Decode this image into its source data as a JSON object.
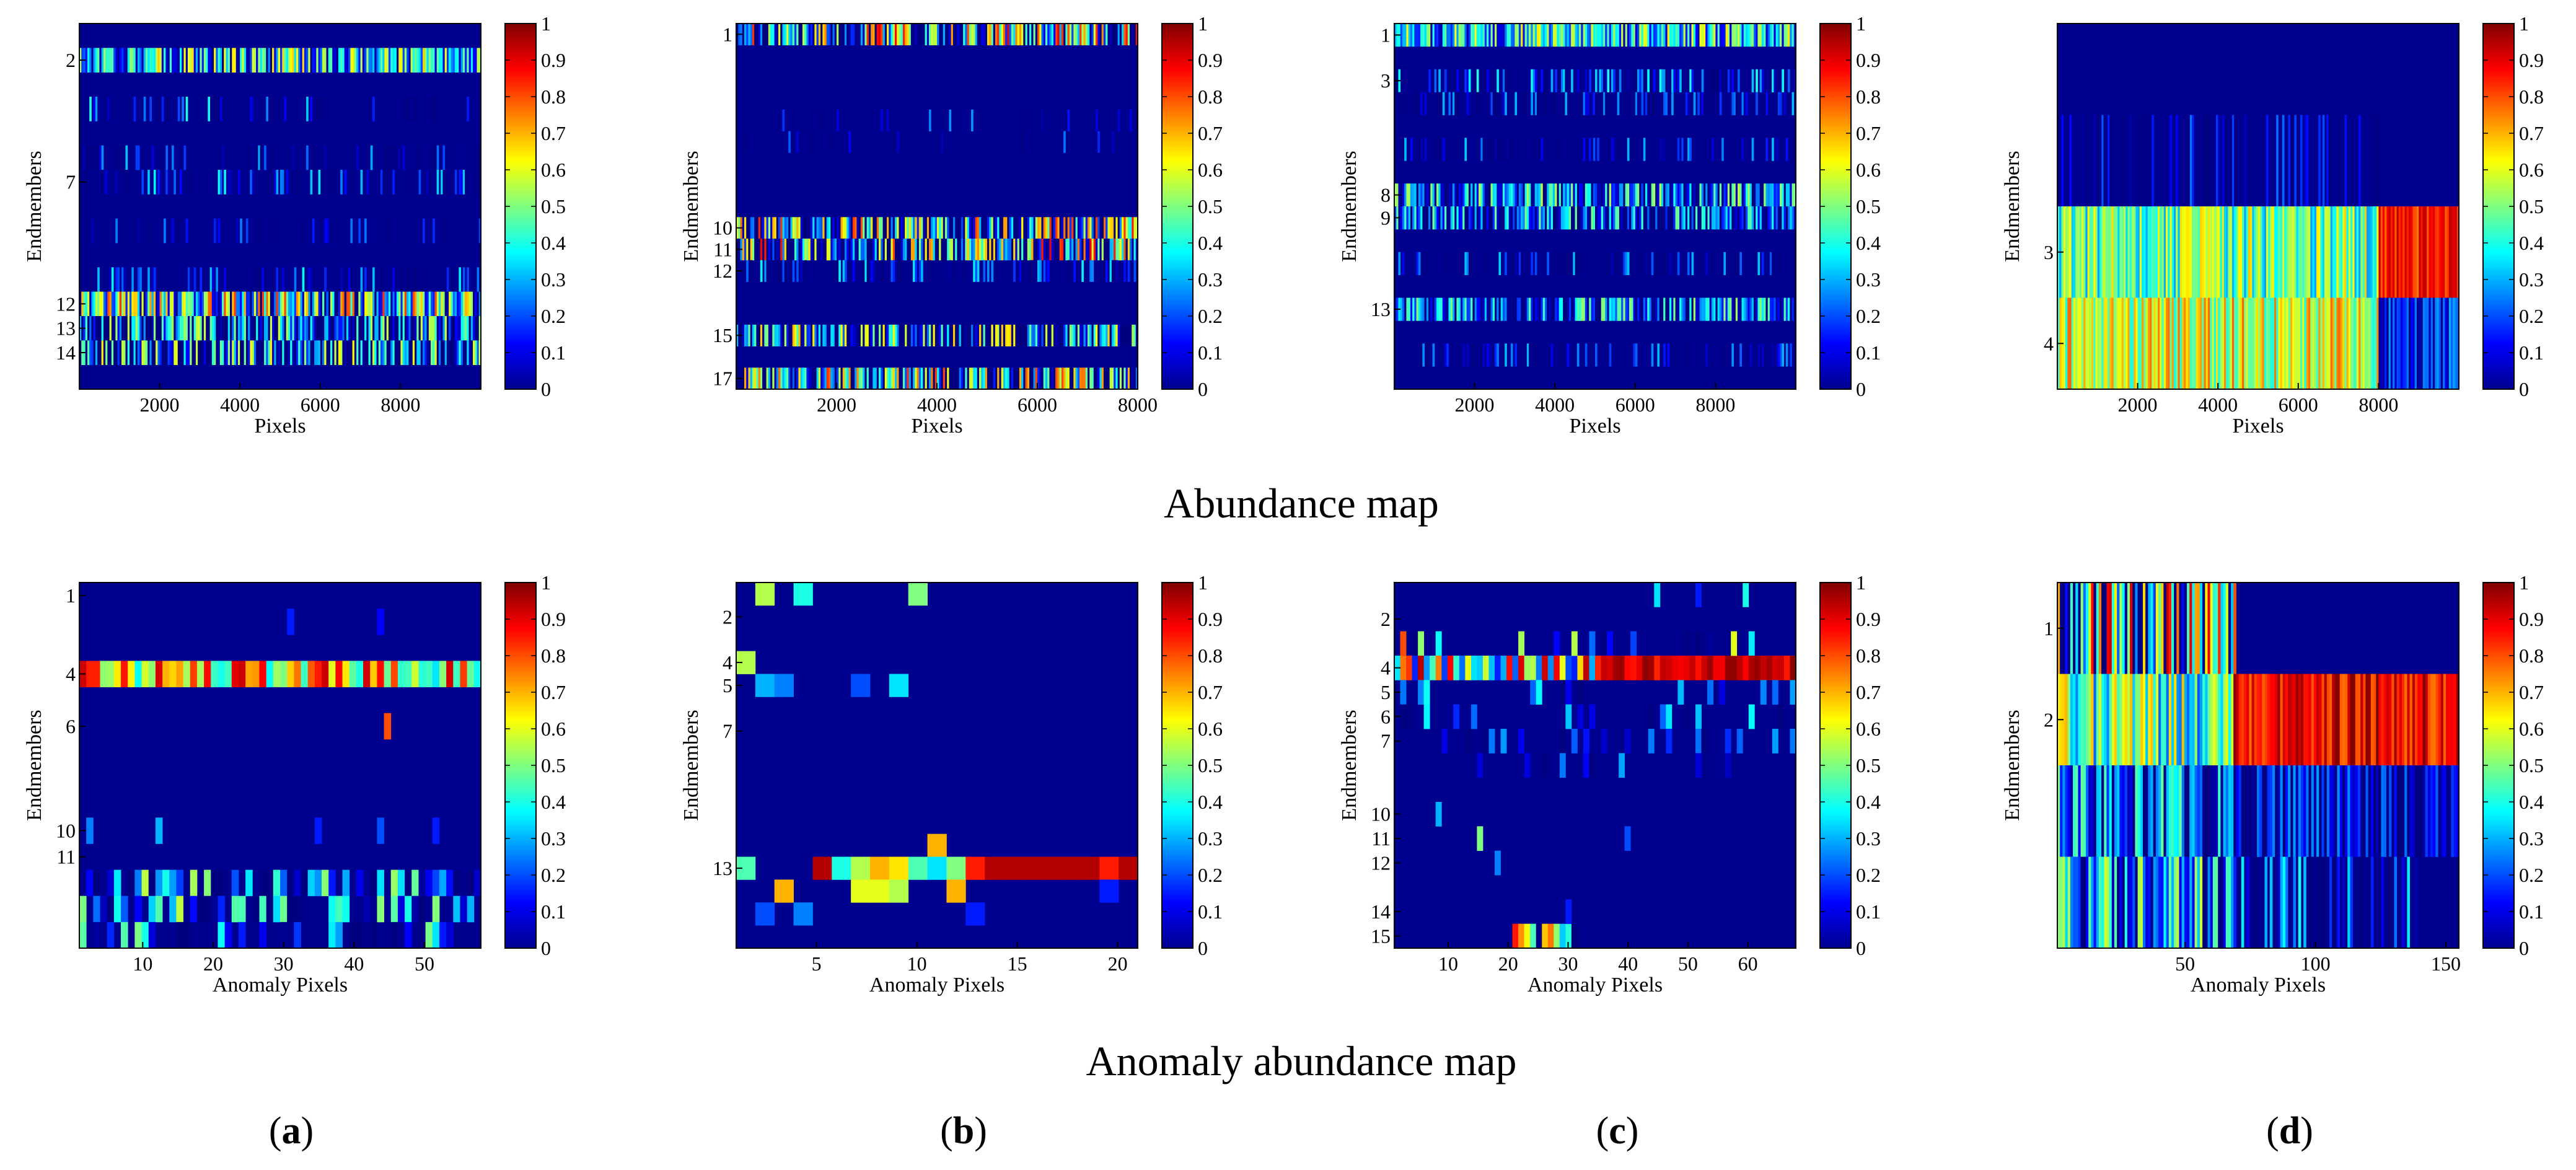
{
  "figure": {
    "row_titles": [
      "Abundance map",
      "Anomaly abundance map"
    ],
    "panel_labels": [
      {
        "open": "(",
        "letter": "a",
        "close": ")"
      },
      {
        "open": "(",
        "letter": "b",
        "close": ")"
      },
      {
        "open": "(",
        "letter": "c",
        "close": ")"
      },
      {
        "open": "(",
        "letter": "d",
        "close": ")"
      }
    ],
    "colorbar_ticks": [
      "0",
      "0.1",
      "0.2",
      "0.3",
      "0.4",
      "0.5",
      "0.6",
      "0.7",
      "0.8",
      "0.9",
      "1"
    ],
    "colormap": "jet",
    "background_color": "#00008f"
  },
  "chart_data": [
    {
      "type": "heatmap",
      "id": "abundance-a",
      "row": 0,
      "col": 0,
      "xlabel": "Pixels",
      "ylabel": "Endmembers",
      "x_range": [
        1,
        10000
      ],
      "x_ticks": [
        2000,
        4000,
        6000,
        8000
      ],
      "n_rows": 15,
      "y_ticks": [
        2,
        7,
        12,
        13,
        14
      ],
      "n_cols": 200,
      "row_profiles": [
        {
          "row": 2,
          "base": 0.33,
          "spread": 0.35
        },
        {
          "row": 4,
          "base": 0.12,
          "spread": 0.35,
          "density": 0.18
        },
        {
          "row": 6,
          "base": 0.08,
          "spread": 0.25,
          "density": 0.2
        },
        {
          "row": 7,
          "base": 0.1,
          "spread": 0.3,
          "density": 0.35
        },
        {
          "row": 9,
          "base": 0.07,
          "spread": 0.2,
          "density": 0.15
        },
        {
          "row": 11,
          "base": 0.08,
          "spread": 0.3,
          "density": 0.25
        },
        {
          "row": 12,
          "base": 0.38,
          "spread": 0.45
        },
        {
          "row": 13,
          "base": 0.15,
          "spread": 0.45
        },
        {
          "row": 14,
          "base": 0.15,
          "spread": 0.5
        }
      ]
    },
    {
      "type": "heatmap",
      "id": "abundance-b",
      "row": 0,
      "col": 1,
      "xlabel": "Pixels",
      "ylabel": "Endmembers",
      "x_range": [
        1,
        8000
      ],
      "x_ticks": [
        2000,
        4000,
        6000,
        8000
      ],
      "n_rows": 17,
      "y_ticks": [
        1,
        10,
        11,
        12,
        15,
        17
      ],
      "n_cols": 200,
      "row_profiles": [
        {
          "row": 1,
          "base": 0.3,
          "spread": 0.6
        },
        {
          "row": 5,
          "base": 0.08,
          "spread": 0.2,
          "density": 0.08
        },
        {
          "row": 6,
          "base": 0.08,
          "spread": 0.2,
          "density": 0.08
        },
        {
          "row": 10,
          "base": 0.25,
          "spread": 0.6
        },
        {
          "row": 11,
          "base": 0.25,
          "spread": 0.65
        },
        {
          "row": 12,
          "base": 0.08,
          "spread": 0.3,
          "density": 0.3
        },
        {
          "row": 15,
          "base": 0.2,
          "spread": 0.5
        },
        {
          "row": 17,
          "base": 0.25,
          "spread": 0.6
        }
      ]
    },
    {
      "type": "heatmap",
      "id": "abundance-c",
      "row": 0,
      "col": 2,
      "xlabel": "Pixels",
      "ylabel": "Endmembers",
      "x_range": [
        1,
        10000
      ],
      "x_ticks": [
        2000,
        4000,
        6000,
        8000
      ],
      "n_rows": 16,
      "y_ticks": [
        1,
        3,
        8,
        9,
        13
      ],
      "n_cols": 200,
      "row_profiles": [
        {
          "row": 1,
          "base": 0.35,
          "spread": 0.3
        },
        {
          "row": 3,
          "base": 0.12,
          "spread": 0.3,
          "density": 0.5
        },
        {
          "row": 4,
          "base": 0.08,
          "spread": 0.25,
          "density": 0.35
        },
        {
          "row": 6,
          "base": 0.08,
          "spread": 0.25,
          "density": 0.3
        },
        {
          "row": 8,
          "base": 0.22,
          "spread": 0.35
        },
        {
          "row": 9,
          "base": 0.15,
          "spread": 0.35
        },
        {
          "row": 11,
          "base": 0.08,
          "spread": 0.25,
          "density": 0.3
        },
        {
          "row": 13,
          "base": 0.2,
          "spread": 0.35
        },
        {
          "row": 15,
          "base": 0.08,
          "spread": 0.25,
          "density": 0.3
        }
      ]
    },
    {
      "type": "heatmap",
      "id": "abundance-d",
      "row": 0,
      "col": 3,
      "xlabel": "Pixels",
      "ylabel": "Endmembers",
      "x_range": [
        1,
        10000
      ],
      "x_ticks": [
        2000,
        4000,
        6000,
        8000
      ],
      "n_rows": 4,
      "y_ticks": [
        3,
        4
      ],
      "n_cols": 200,
      "row_profiles": [
        {
          "row": 2,
          "base": 0.05,
          "spread": 0.2,
          "density": 0.35,
          "x_end": 0.8
        },
        {
          "row": 3,
          "base": 0.48,
          "spread": 0.2,
          "x_end": 0.8
        },
        {
          "row": 3,
          "base": 0.85,
          "spread": 0.1,
          "x_start": 0.8
        },
        {
          "row": 4,
          "base": 0.58,
          "spread": 0.2,
          "x_end": 0.8
        },
        {
          "row": 4,
          "base": 0.15,
          "spread": 0.15,
          "x_start": 0.8
        }
      ]
    },
    {
      "type": "heatmap",
      "id": "anomaly-a",
      "row": 1,
      "col": 0,
      "xlabel": "Anomaly Pixels",
      "ylabel": "Endmembers",
      "x_range": [
        1,
        58
      ],
      "x_ticks": [
        10,
        20,
        30,
        40,
        50
      ],
      "n_rows": 14,
      "y_ticks": [
        1,
        4,
        6,
        10,
        11
      ],
      "n_cols": 58,
      "row_profiles": [
        {
          "row": 4,
          "base": 0.65,
          "spread": 0.3
        },
        {
          "row": 12,
          "base": 0.22,
          "spread": 0.35,
          "density": 0.7
        },
        {
          "row": 13,
          "base": 0.22,
          "spread": 0.35,
          "density": 0.6
        },
        {
          "row": 14,
          "base": 0.15,
          "spread": 0.35,
          "density": 0.4
        }
      ],
      "cells": [
        {
          "r": 2,
          "c": 31,
          "v": 0.15
        },
        {
          "r": 2,
          "c": 44,
          "v": 0.12
        },
        {
          "r": 6,
          "c": 45,
          "v": 0.8
        },
        {
          "r": 10,
          "c": 2,
          "v": 0.25
        },
        {
          "r": 10,
          "c": 12,
          "v": 0.3
        },
        {
          "r": 10,
          "c": 35,
          "v": 0.15
        },
        {
          "r": 10,
          "c": 44,
          "v": 0.2
        },
        {
          "r": 10,
          "c": 52,
          "v": 0.15
        }
      ]
    },
    {
      "type": "heatmap",
      "id": "anomaly-b",
      "row": 1,
      "col": 1,
      "xlabel": "Anomaly Pixels",
      "ylabel": "Endmembers",
      "x_range": [
        1,
        21
      ],
      "x_ticks": [
        5,
        10,
        15,
        20
      ],
      "n_rows": 16,
      "y_ticks": [
        2,
        4,
        5,
        7,
        13
      ],
      "n_cols": 21,
      "cells": [
        {
          "r": 1,
          "c": 2,
          "v": 0.55
        },
        {
          "r": 1,
          "c": 4,
          "v": 0.4
        },
        {
          "r": 1,
          "c": 10,
          "v": 0.5
        },
        {
          "r": 4,
          "c": 1,
          "v": 0.55
        },
        {
          "r": 5,
          "c": 2,
          "v": 0.3
        },
        {
          "r": 5,
          "c": 3,
          "v": 0.25
        },
        {
          "r": 5,
          "c": 7,
          "v": 0.2
        },
        {
          "r": 5,
          "c": 9,
          "v": 0.35
        },
        {
          "r": 12,
          "c": 11,
          "v": 0.7
        },
        {
          "r": 13,
          "c": 1,
          "v": 0.45
        },
        {
          "r": 13,
          "c": 5,
          "v": 0.95
        },
        {
          "r": 13,
          "c": 6,
          "v": 0.4
        },
        {
          "r": 13,
          "c": 7,
          "v": 0.55
        },
        {
          "r": 13,
          "c": 8,
          "v": 0.7
        },
        {
          "r": 13,
          "c": 9,
          "v": 0.65
        },
        {
          "r": 13,
          "c": 10,
          "v": 0.45
        },
        {
          "r": 13,
          "c": 11,
          "v": 0.35
        },
        {
          "r": 13,
          "c": 12,
          "v": 0.5
        },
        {
          "r": 13,
          "c": 13,
          "v": 0.85
        },
        {
          "r": 13,
          "c": 14,
          "v": 0.95
        },
        {
          "r": 13,
          "c": 15,
          "v": 0.95
        },
        {
          "r": 13,
          "c": 16,
          "v": 0.95
        },
        {
          "r": 13,
          "c": 17,
          "v": 0.95
        },
        {
          "r": 13,
          "c": 18,
          "v": 0.95
        },
        {
          "r": 13,
          "c": 19,
          "v": 0.95
        },
        {
          "r": 13,
          "c": 20,
          "v": 0.85
        },
        {
          "r": 13,
          "c": 21,
          "v": 0.95
        },
        {
          "r": 14,
          "c": 3,
          "v": 0.7
        },
        {
          "r": 14,
          "c": 7,
          "v": 0.6
        },
        {
          "r": 14,
          "c": 8,
          "v": 0.6
        },
        {
          "r": 14,
          "c": 9,
          "v": 0.55
        },
        {
          "r": 14,
          "c": 12,
          "v": 0.7
        },
        {
          "r": 14,
          "c": 20,
          "v": 0.15
        },
        {
          "r": 15,
          "c": 2,
          "v": 0.2
        },
        {
          "r": 15,
          "c": 4,
          "v": 0.25
        },
        {
          "r": 15,
          "c": 13,
          "v": 0.15
        }
      ]
    },
    {
      "type": "heatmap",
      "id": "anomaly-c",
      "row": 1,
      "col": 2,
      "xlabel": "Anomaly Pixels",
      "ylabel": "Endmembers",
      "x_range": [
        1,
        68
      ],
      "x_ticks": [
        10,
        20,
        30,
        40,
        50,
        60
      ],
      "n_rows": 15,
      "y_ticks": [
        2,
        4,
        5,
        6,
        7,
        10,
        11,
        12,
        14,
        15
      ],
      "n_cols": 68,
      "row_profiles": [
        {
          "row": 3,
          "base": 0.05,
          "spread": 0.5,
          "density": 0.2
        },
        {
          "row": 4,
          "base": 0.55,
          "spread": 0.4,
          "x_end": 0.5
        },
        {
          "row": 4,
          "base": 0.92,
          "spread": 0.08,
          "x_start": 0.5
        },
        {
          "row": 5,
          "base": 0.1,
          "spread": 0.3,
          "density": 0.2
        },
        {
          "row": 6,
          "base": 0.1,
          "spread": 0.3,
          "density": 0.25
        },
        {
          "row": 7,
          "base": 0.1,
          "spread": 0.35,
          "density": 0.25
        },
        {
          "row": 8,
          "base": 0.08,
          "spread": 0.25,
          "density": 0.12
        },
        {
          "row": 15,
          "base": 0.4,
          "spread": 0.5,
          "x_start": 0.3,
          "x_end": 0.45
        }
      ],
      "cells": [
        {
          "r": 1,
          "c": 45,
          "v": 0.35
        },
        {
          "r": 1,
          "c": 52,
          "v": 0.15
        },
        {
          "r": 1,
          "c": 60,
          "v": 0.4
        },
        {
          "r": 3,
          "c": 2,
          "v": 0.8
        },
        {
          "r": 3,
          "c": 31,
          "v": 0.55
        },
        {
          "r": 3,
          "c": 58,
          "v": 0.6
        },
        {
          "r": 10,
          "c": 8,
          "v": 0.3
        },
        {
          "r": 11,
          "c": 15,
          "v": 0.5
        },
        {
          "r": 11,
          "c": 40,
          "v": 0.2
        },
        {
          "r": 12,
          "c": 18,
          "v": 0.25
        },
        {
          "r": 14,
          "c": 30,
          "v": 0.15
        }
      ]
    },
    {
      "type": "heatmap",
      "id": "anomaly-d",
      "row": 1,
      "col": 3,
      "xlabel": "Anomaly Pixels",
      "ylabel": "Endmembers",
      "x_range": [
        1,
        155
      ],
      "x_ticks": [
        50,
        100,
        150
      ],
      "n_rows": 4,
      "y_ticks": [
        1,
        2
      ],
      "n_cols": 155,
      "row_profiles": [
        {
          "row": 1,
          "base": 0.35,
          "spread": 0.6,
          "x_end": 0.44
        },
        {
          "row": 2,
          "base": 0.45,
          "spread": 0.25,
          "x_end": 0.44
        },
        {
          "row": 2,
          "base": 0.88,
          "spread": 0.12,
          "x_start": 0.44
        },
        {
          "row": 3,
          "base": 0.15,
          "spread": 0.35,
          "x_end": 0.44
        },
        {
          "row": 3,
          "base": 0.08,
          "spread": 0.2,
          "x_start": 0.44
        },
        {
          "row": 4,
          "base": 0.2,
          "spread": 0.4,
          "x_end": 0.44
        },
        {
          "row": 4,
          "base": 0.1,
          "spread": 0.3,
          "density": 0.6,
          "x_start": 0.44,
          "x_end": 0.9
        }
      ]
    }
  ]
}
